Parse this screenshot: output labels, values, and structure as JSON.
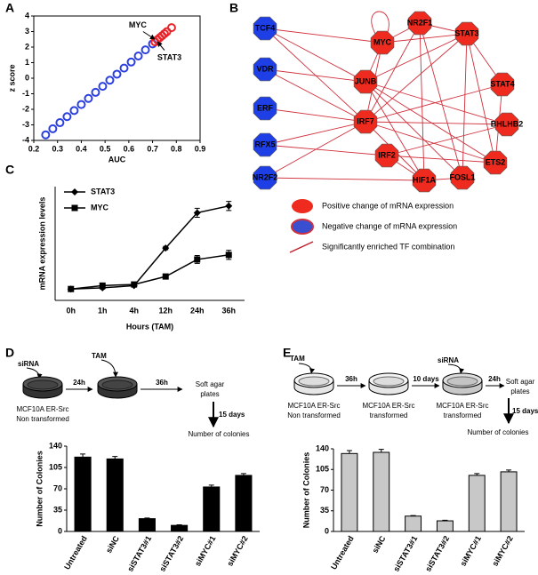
{
  "panel_labels": [
    "A",
    "B",
    "C",
    "D",
    "E"
  ],
  "chart_data": [
    {
      "type": "scatter",
      "xlabel": "AUC",
      "ylabel": "z score",
      "xlim": [
        0.2,
        0.9
      ],
      "xticks": [
        0.2,
        0.3,
        0.4,
        0.5,
        0.6,
        0.7,
        0.8,
        0.9
      ],
      "ylim": [
        -4,
        4
      ],
      "yticks": [
        -4,
        -3,
        -2,
        -1,
        0,
        1,
        2,
        3,
        4
      ],
      "series": [
        {
          "color": "#2b3fe0",
          "x": [
            0.25,
            0.28,
            0.31,
            0.34,
            0.37,
            0.4,
            0.43,
            0.46,
            0.49,
            0.52,
            0.55,
            0.58,
            0.61,
            0.64,
            0.67,
            0.7
          ],
          "values": [
            -3.64,
            -3.25,
            -2.86,
            -2.47,
            -2.08,
            -1.69,
            -1.3,
            -0.91,
            -0.52,
            -0.13,
            0.26,
            0.65,
            1.04,
            1.43,
            1.82,
            2.21
          ]
        },
        {
          "color": "#e8232a",
          "x": [
            0.71,
            0.72,
            0.73,
            0.74,
            0.75,
            0.76,
            0.78
          ],
          "values": [
            2.34,
            2.47,
            2.6,
            2.73,
            2.86,
            2.99,
            3.25
          ]
        }
      ],
      "annotations": [
        "MYC",
        "STAT3"
      ]
    },
    {
      "type": "line",
      "xlabel": "Hours (TAM)",
      "ylabel": "mRNA expression levels",
      "categories": [
        "0h",
        "1h",
        "4h",
        "12h",
        "24h",
        "36h"
      ],
      "ylim": [
        0,
        10
      ],
      "series": [
        {
          "name": "STAT3",
          "color": "#000000",
          "marker": "diamond",
          "values": [
            1,
            1.1,
            1.3,
            4.6,
            7.7,
            8.3
          ],
          "errors": [
            0.1,
            0.1,
            0.1,
            0.15,
            0.4,
            0.4
          ]
        },
        {
          "name": "MYC",
          "color": "#000000",
          "marker": "square",
          "values": [
            1,
            1.3,
            1.4,
            2.1,
            3.6,
            4.0
          ],
          "errors": [
            0.1,
            0.1,
            0.1,
            0.15,
            0.35,
            0.4
          ]
        }
      ]
    },
    {
      "type": "bar",
      "ylabel": "Number of Colonies",
      "categories": [
        "Untreated",
        "siNC",
        "siSTAT3#1",
        "siSTAT3#2",
        "siMYC#1",
        "siMYC#2"
      ],
      "values": [
        122,
        119,
        21,
        10,
        73,
        92
      ],
      "errors": [
        5,
        4,
        1,
        1,
        3,
        3
      ],
      "color": "#000000",
      "ylim": [
        0,
        140
      ],
      "yticks": [
        0,
        35,
        70,
        105,
        140
      ]
    },
    {
      "type": "bar",
      "ylabel": "Number of Colonies",
      "categories": [
        "Untreated",
        "siNC",
        "siSTAT3#1",
        "siSTAT3#2",
        "siMYC#1",
        "siMYC#2"
      ],
      "values": [
        132,
        134,
        26,
        18,
        95,
        101
      ],
      "errors": [
        5,
        5,
        1,
        1,
        3,
        3
      ],
      "color": "#c8c8c8",
      "ylim": [
        0,
        140
      ],
      "yticks": [
        0,
        35,
        70,
        105,
        140
      ]
    }
  ],
  "network": {
    "nodes": [
      {
        "label": "TCF4",
        "color": "#1f3fe6"
      },
      {
        "label": "VDR",
        "color": "#1f3fe6"
      },
      {
        "label": "ERF",
        "color": "#1f3fe6"
      },
      {
        "label": "RFX5",
        "color": "#1f3fe6"
      },
      {
        "label": "NR2F2",
        "color": "#1f3fe6"
      },
      {
        "label": "MYC",
        "color": "#ee2b1e"
      },
      {
        "label": "NR2F1",
        "color": "#ee2b1e"
      },
      {
        "label": "STAT3",
        "color": "#ee2b1e"
      },
      {
        "label": "STAT4",
        "color": "#ee2b1e"
      },
      {
        "label": "JUNB",
        "color": "#ee2b1e"
      },
      {
        "label": "BHLHB2",
        "color": "#ee2b1e"
      },
      {
        "label": "IRF7",
        "color": "#ee2b1e"
      },
      {
        "label": "ETS2",
        "color": "#ee2b1e"
      },
      {
        "label": "IRF2",
        "color": "#ee2b1e"
      },
      {
        "label": "HIF1A",
        "color": "#ee2b1e"
      },
      {
        "label": "FOSL1",
        "color": "#ee2b1e"
      }
    ],
    "legend": [
      "Positive change of mRNA expression",
      "Negative change of mRNA expression",
      "Significantly enriched TF combination"
    ]
  },
  "schematic_d": {
    "reagent1": "siRNA",
    "reagent2": "TAM",
    "time1": "24h",
    "time2": "36h",
    "plates": [
      "Soft agar",
      "plates"
    ],
    "cells": [
      "MCF10A ER-Src",
      "Non transformed"
    ],
    "days": "15 days",
    "readout": "Number of colonies"
  },
  "schematic_e": {
    "reagent1": "TAM",
    "reagent2": "siRNA",
    "time1": "36h",
    "time2": "10 days",
    "time3": "24h",
    "plates": [
      "Soft agar",
      "plates"
    ],
    "cells1": [
      "MCF10A ER-Src",
      "Non transformed"
    ],
    "cells2": [
      "MCF10A ER-Src",
      "transformed"
    ],
    "cells3": [
      "MCF10A ER-Src",
      "transformed"
    ],
    "days": "15 days",
    "readout": "Number of colonies"
  }
}
